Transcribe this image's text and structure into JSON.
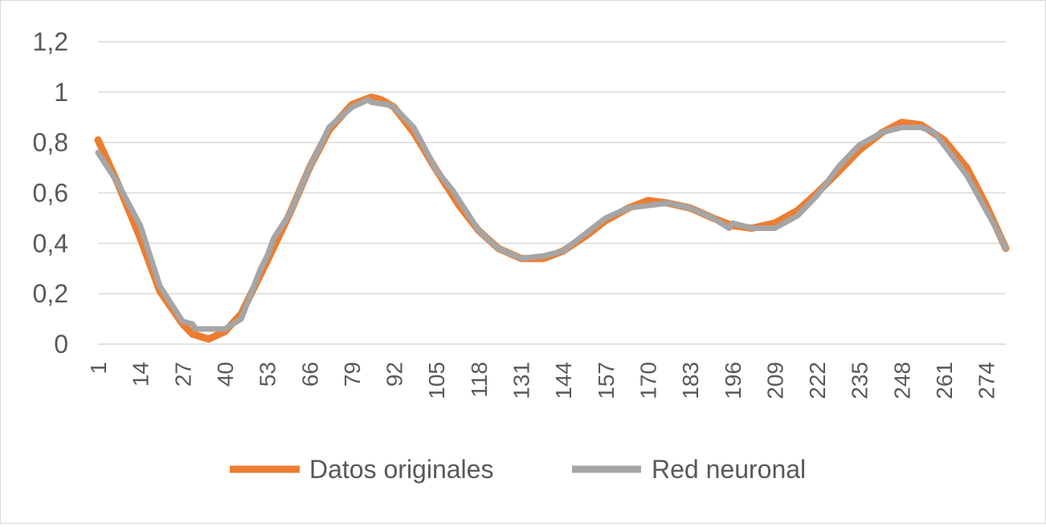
{
  "chart_data": {
    "type": "line",
    "title": "",
    "xlabel": "",
    "ylabel": "",
    "x_range": [
      1,
      280
    ],
    "ylim": [
      0,
      1.2
    ],
    "y_ticks": [
      "0",
      "0,2",
      "0,4",
      "0,6",
      "0,8",
      "1",
      "1,2"
    ],
    "x_ticks": [
      1,
      14,
      27,
      40,
      53,
      66,
      79,
      92,
      105,
      118,
      131,
      144,
      157,
      170,
      183,
      196,
      209,
      222,
      235,
      248,
      261,
      274
    ],
    "grid": "horizontal",
    "legend_position": "bottom",
    "series": [
      {
        "name": "Datos originales",
        "color": "#ED7D31",
        "x": [
          1,
          7,
          14,
          20,
          27,
          30,
          35,
          40,
          45,
          53,
          60,
          66,
          72,
          79,
          85,
          88,
          92,
          98,
          105,
          112,
          118,
          124,
          131,
          138,
          144,
          151,
          157,
          164,
          170,
          176,
          183,
          190,
          196,
          202,
          209,
          216,
          222,
          229,
          235,
          242,
          248,
          254,
          261,
          268,
          274,
          280
        ],
        "values": [
          0.81,
          0.64,
          0.42,
          0.21,
          0.08,
          0.04,
          0.02,
          0.05,
          0.12,
          0.33,
          0.52,
          0.7,
          0.85,
          0.95,
          0.98,
          0.97,
          0.94,
          0.84,
          0.69,
          0.55,
          0.45,
          0.38,
          0.34,
          0.34,
          0.37,
          0.43,
          0.49,
          0.54,
          0.57,
          0.56,
          0.54,
          0.5,
          0.47,
          0.46,
          0.48,
          0.53,
          0.6,
          0.69,
          0.77,
          0.84,
          0.88,
          0.87,
          0.81,
          0.7,
          0.55,
          0.38
        ]
      },
      {
        "name": "Red neuronal",
        "color": "#A5A5A5",
        "x": [
          1,
          7,
          14,
          20,
          27,
          30,
          31,
          35,
          40,
          45,
          51,
          53,
          55,
          60,
          66,
          72,
          79,
          84,
          85,
          90,
          92,
          98,
          105,
          110,
          112,
          118,
          124,
          131,
          138,
          144,
          151,
          157,
          164,
          170,
          176,
          183,
          190,
          195,
          196,
          202,
          209,
          216,
          222,
          229,
          235,
          242,
          248,
          254,
          258,
          261,
          268,
          274,
          277,
          280
        ],
        "values": [
          0.76,
          0.64,
          0.47,
          0.23,
          0.09,
          0.08,
          0.06,
          0.06,
          0.06,
          0.1,
          0.3,
          0.35,
          0.42,
          0.52,
          0.7,
          0.86,
          0.94,
          0.97,
          0.96,
          0.95,
          0.94,
          0.86,
          0.69,
          0.61,
          0.57,
          0.45,
          0.38,
          0.34,
          0.35,
          0.37,
          0.44,
          0.5,
          0.54,
          0.55,
          0.56,
          0.54,
          0.5,
          0.46,
          0.48,
          0.46,
          0.46,
          0.51,
          0.59,
          0.71,
          0.79,
          0.84,
          0.86,
          0.86,
          0.84,
          0.79,
          0.67,
          0.53,
          0.46,
          0.38
        ]
      }
    ]
  }
}
